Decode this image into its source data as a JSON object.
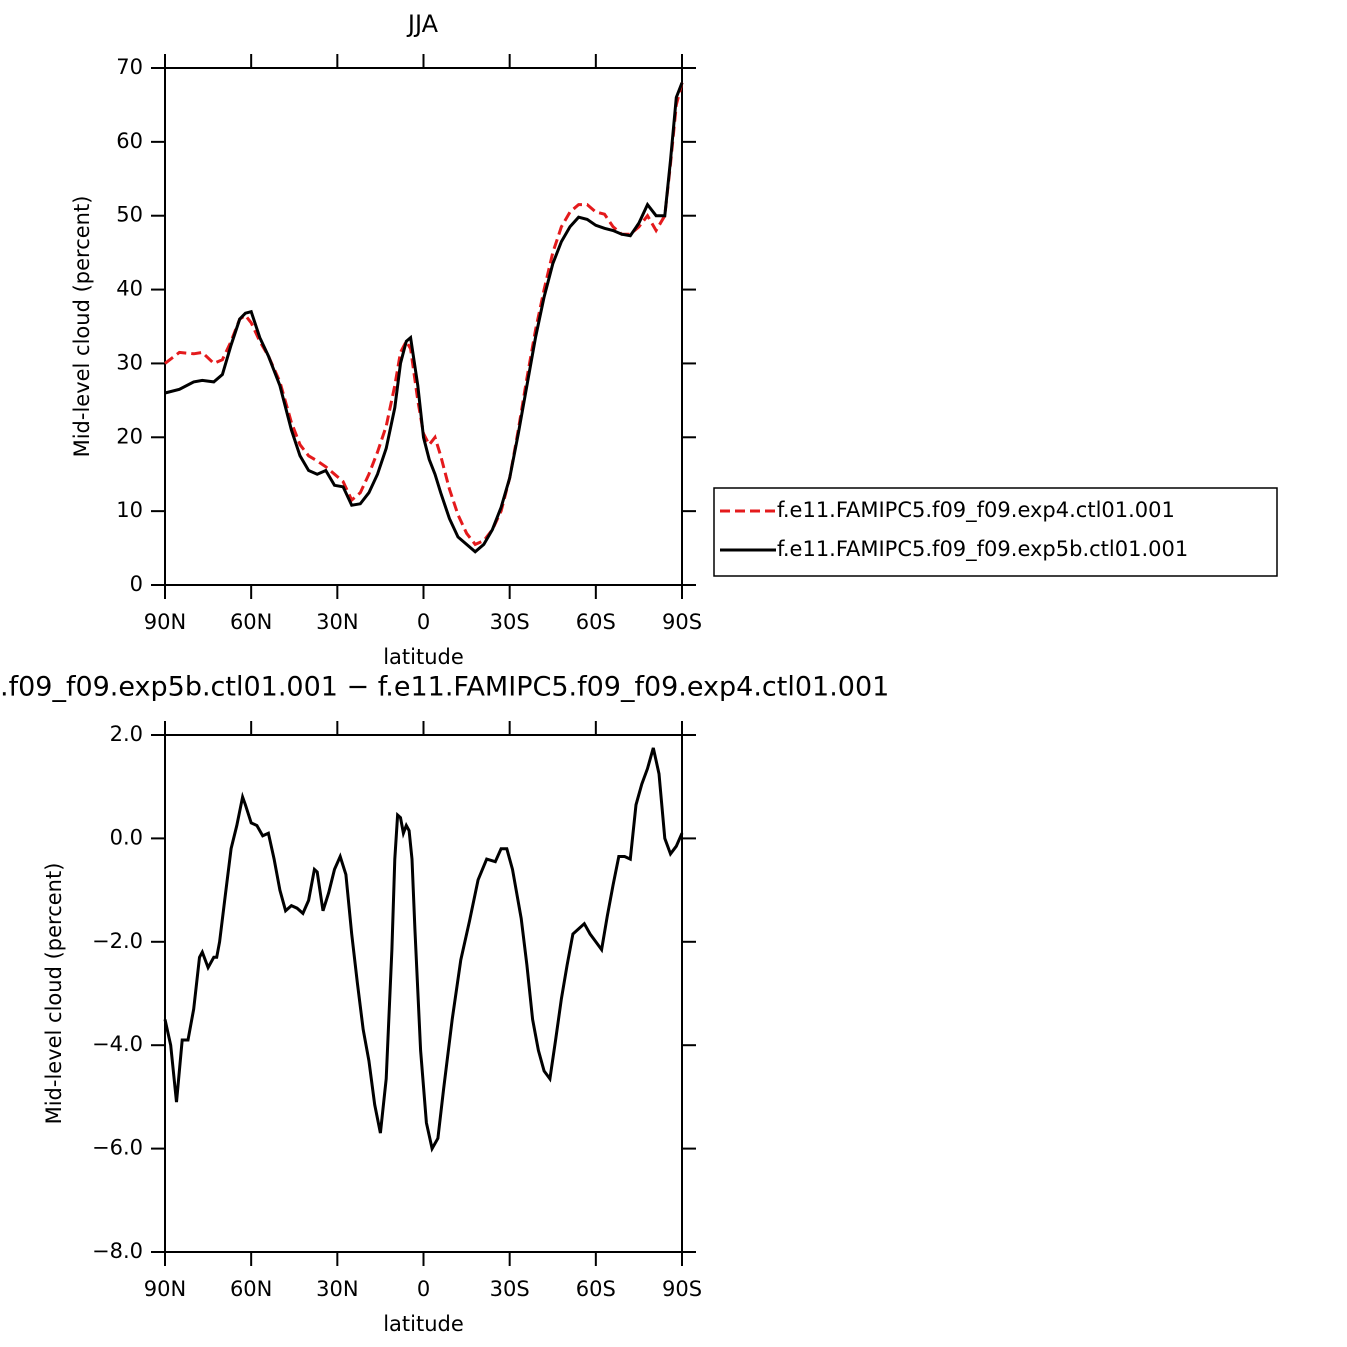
{
  "chart_data": [
    {
      "type": "line",
      "title": "JJA",
      "xlabel": "latitude",
      "ylabel": "Mid-level cloud (percent)",
      "x": [
        90,
        85,
        80,
        77,
        73,
        70,
        67,
        64,
        62,
        60,
        57,
        54,
        50,
        46,
        43,
        40,
        37,
        34,
        31,
        28,
        25,
        22,
        19,
        16,
        13,
        10,
        8,
        6,
        4.5,
        2,
        0,
        -2,
        -4,
        -6,
        -9,
        -12,
        -15,
        -18,
        -21,
        -24,
        -27,
        -30,
        -33,
        -36,
        -39,
        -42,
        -45,
        -48,
        -51,
        -54,
        -57,
        -60,
        -63,
        -66,
        -69,
        -72,
        -75,
        -78,
        -81,
        -84,
        -86,
        -88,
        -90
      ],
      "series": [
        {
          "name": "f.e11.FAMIPC5.f09_f09.exp4.ctl01.001",
          "color": "#e41a1c",
          "linestyle": "dashed",
          "values": [
            30,
            31.5,
            31.3,
            31.5,
            30,
            30.5,
            33,
            36,
            36.5,
            35.5,
            33,
            31,
            27.5,
            22,
            19,
            17.5,
            16.8,
            16,
            15,
            14,
            11.5,
            12.5,
            15,
            18,
            21.5,
            27,
            31.5,
            33,
            32,
            25,
            20.5,
            19,
            20,
            17.5,
            13,
            9.5,
            7,
            5.5,
            6,
            7.5,
            10,
            14.5,
            21,
            28,
            34.5,
            40,
            45,
            48.5,
            50.5,
            51.5,
            51.5,
            50.5,
            50.2,
            48.5,
            47.5,
            47.5,
            48.5,
            50,
            48,
            50,
            57,
            65,
            68
          ]
        },
        {
          "name": "f.e11.FAMIPC5.f09_f09.exp5b.ctl01.001",
          "color": "#000000",
          "linestyle": "solid",
          "values": [
            26,
            26.5,
            27.5,
            27.7,
            27.5,
            28.5,
            32.5,
            36,
            36.8,
            37,
            33.5,
            31,
            27,
            21,
            17.5,
            15.5,
            15,
            15.5,
            13.5,
            13.3,
            10.8,
            11,
            12.5,
            15,
            18.5,
            24,
            30,
            33,
            33.5,
            27,
            20,
            17,
            15,
            12.5,
            9,
            6.5,
            5.5,
            4.5,
            5.5,
            7.5,
            10.5,
            14.5,
            20.5,
            27,
            33.5,
            39,
            43.5,
            46.5,
            48.5,
            49.8,
            49.5,
            48.7,
            48.3,
            48,
            47.5,
            47.3,
            49,
            51.5,
            50,
            50,
            57.5,
            66,
            68
          ]
        }
      ],
      "xlim": [
        90,
        -90
      ],
      "xticks": [
        {
          "value": 90,
          "label": "90N"
        },
        {
          "value": 60,
          "label": "60N"
        },
        {
          "value": 30,
          "label": "30N"
        },
        0,
        {
          "value": -30,
          "label": "30S"
        },
        {
          "value": -60,
          "label": "60S"
        },
        {
          "value": -90,
          "label": "90S"
        }
      ],
      "ylim": [
        0,
        70
      ],
      "yticks": [
        0,
        10,
        20,
        30,
        40,
        50,
        60,
        70
      ],
      "legend": "right"
    },
    {
      "type": "line",
      "title": ".f09_f09.exp5b.ctl01.001 − f.e11.FAMIPC5.f09_f09.exp4.ctl01.001",
      "xlabel": "latitude",
      "ylabel": "Mid-level cloud (percent)",
      "x": [
        90,
        88,
        86,
        84,
        82,
        80,
        78,
        77,
        75,
        73,
        72,
        71,
        69,
        67,
        65,
        63,
        62,
        60,
        58,
        56,
        54,
        52,
        50,
        48,
        46,
        44,
        42,
        40,
        38,
        37,
        35,
        33,
        31,
        29,
        27,
        25,
        23,
        21,
        19,
        17,
        15,
        13,
        11,
        10,
        9,
        8,
        7,
        6,
        5,
        4,
        3,
        1,
        -1,
        -3,
        -5,
        -7,
        -10,
        -13,
        -16,
        -19,
        -22,
        -25,
        -27,
        -29,
        -31,
        -34,
        -36,
        -38,
        -40,
        -42,
        -44,
        -46,
        -48,
        -50,
        -52,
        -54,
        -56,
        -58,
        -60,
        -62,
        -64,
        -66,
        -68,
        -70,
        -72,
        -74,
        -76,
        -78,
        -80,
        -82,
        -84,
        -86,
        -88,
        -90
      ],
      "series": [
        {
          "color": "#000000",
          "linestyle": "solid",
          "values": [
            -3.5,
            -4.0,
            -5.1,
            -3.9,
            -3.9,
            -3.3,
            -2.3,
            -2.2,
            -2.5,
            -2.3,
            -2.3,
            -2.0,
            -1.1,
            -0.2,
            0.25,
            0.8,
            0.65,
            0.3,
            0.25,
            0.05,
            0.1,
            -0.4,
            -1.0,
            -1.4,
            -1.3,
            -1.35,
            -1.45,
            -1.2,
            -0.6,
            -0.65,
            -1.4,
            -1.05,
            -0.6,
            -0.35,
            -0.7,
            -1.85,
            -2.8,
            -3.7,
            -4.3,
            -5.15,
            -5.7,
            -4.65,
            -2.15,
            -0.4,
            0.45,
            0.4,
            0.1,
            0.25,
            0.15,
            -0.4,
            -1.75,
            -4.1,
            -5.5,
            -6.0,
            -5.8,
            -4.85,
            -3.5,
            -2.35,
            -1.6,
            -0.8,
            -0.4,
            -0.45,
            -0.2,
            -0.2,
            -0.6,
            -1.55,
            -2.45,
            -3.5,
            -4.1,
            -4.5,
            -4.65,
            -3.9,
            -3.1,
            -2.45,
            -1.85,
            -1.75,
            -1.65,
            -1.85,
            -2.0,
            -2.15,
            -1.5,
            -0.9,
            -0.35,
            -0.35,
            -0.4,
            0.65,
            1.05,
            1.35,
            1.75,
            1.25,
            0.0,
            -0.3,
            -0.15,
            0.1
          ]
        }
      ],
      "xlim": [
        90,
        -90
      ],
      "xticks": [
        {
          "value": 90,
          "label": "90N"
        },
        {
          "value": 60,
          "label": "60N"
        },
        {
          "value": 30,
          "label": "30N"
        },
        0,
        {
          "value": -30,
          "label": "30S"
        },
        {
          "value": -60,
          "label": "60S"
        },
        {
          "value": -90,
          "label": "90S"
        }
      ],
      "ylim": [
        -8,
        2
      ],
      "yticks": [
        {
          "value": -8,
          "label": "−8.0"
        },
        {
          "value": -6,
          "label": "−6.0"
        },
        {
          "value": -4,
          "label": "−4.0"
        },
        {
          "value": -2,
          "label": "−2.0"
        },
        {
          "value": 0,
          "label": "0.0"
        },
        {
          "value": 2,
          "label": "2.0"
        }
      ]
    }
  ]
}
